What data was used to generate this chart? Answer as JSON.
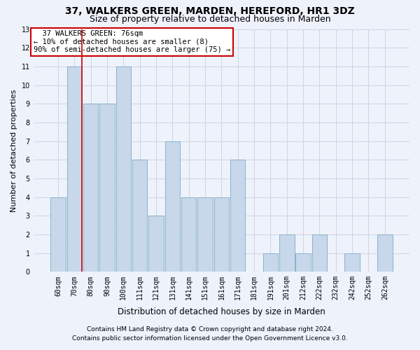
{
  "title": "37, WALKERS GREEN, MARDEN, HEREFORD, HR1 3DZ",
  "subtitle": "Size of property relative to detached houses in Marden",
  "xlabel": "Distribution of detached houses by size in Marden",
  "ylabel": "Number of detached properties",
  "categories": [
    "60sqm",
    "70sqm",
    "80sqm",
    "90sqm",
    "100sqm",
    "111sqm",
    "121sqm",
    "131sqm",
    "141sqm",
    "151sqm",
    "161sqm",
    "171sqm",
    "181sqm",
    "191sqm",
    "201sqm",
    "212sqm",
    "222sqm",
    "232sqm",
    "242sqm",
    "252sqm",
    "262sqm"
  ],
  "values": [
    4,
    11,
    9,
    9,
    11,
    6,
    3,
    7,
    4,
    4,
    4,
    6,
    0,
    1,
    2,
    1,
    2,
    0,
    1,
    0,
    2
  ],
  "bar_color": "#c8d8ea",
  "bar_edge_color": "#7aaac8",
  "grid_color": "#c8d0e0",
  "annotation_box_text": "  37 WALKERS GREEN: 76sqm\n← 10% of detached houses are smaller (8)\n90% of semi-detached houses are larger (75) →",
  "annotation_box_color": "#ffffff",
  "annotation_box_edge_color": "#cc0000",
  "vline_color": "#cc0000",
  "vline_x_idx": 1,
  "ylim": [
    0,
    13
  ],
  "yticks": [
    0,
    1,
    2,
    3,
    4,
    5,
    6,
    7,
    8,
    9,
    10,
    11,
    12,
    13
  ],
  "footer_line1": "Contains HM Land Registry data © Crown copyright and database right 2024.",
  "footer_line2": "Contains public sector information licensed under the Open Government Licence v3.0.",
  "title_fontsize": 10,
  "subtitle_fontsize": 9,
  "xlabel_fontsize": 8.5,
  "ylabel_fontsize": 8,
  "tick_fontsize": 7,
  "annotation_fontsize": 7.5,
  "footer_fontsize": 6.5,
  "background_color": "#eef2fb"
}
